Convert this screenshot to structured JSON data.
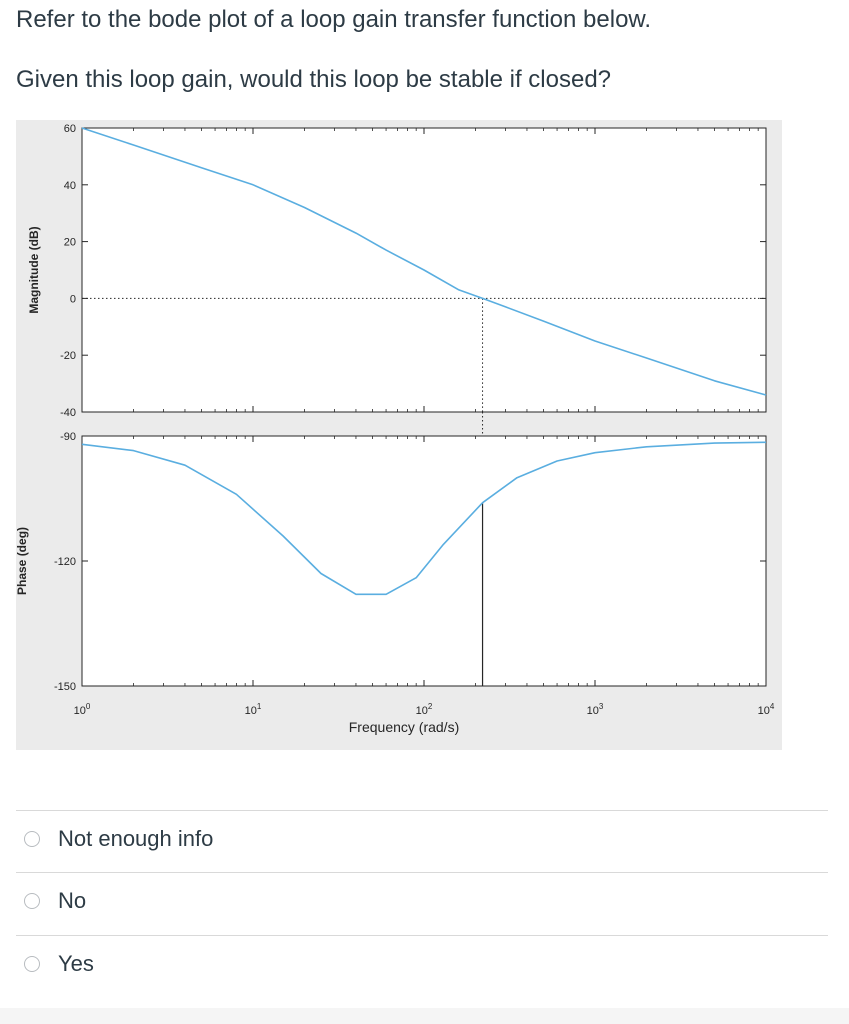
{
  "question": {
    "line1": "Refer to the bode plot of a loop gain transfer function below.",
    "line2": "Given this loop gain, would this loop be stable if closed?"
  },
  "answers": [
    {
      "label": "Not enough info",
      "selected": false
    },
    {
      "label": "No",
      "selected": false
    },
    {
      "label": "Yes",
      "selected": false
    }
  ],
  "colors": {
    "curve": "#5aaee0",
    "question_text": "#2d3b45",
    "figure_bg": "#ebebeb"
  },
  "chart_data": [
    {
      "type": "line",
      "title": "",
      "xlabel": "Frequency (rad/s)",
      "ylabel": "Magnitude (dB)",
      "xscale": "log",
      "xlim": [
        1,
        10000
      ],
      "ylim": [
        -40,
        60
      ],
      "yticks": [
        "60",
        "40",
        "20",
        "0",
        "-20",
        "-40"
      ],
      "grid": false,
      "series": [
        {
          "x": [
            1,
            2,
            5,
            10,
            20,
            40,
            60,
            100,
            160,
            220,
            300,
            500,
            1000,
            2000,
            5000,
            10000
          ],
          "y": [
            60,
            54,
            46,
            40,
            32,
            23,
            17,
            10,
            3,
            0,
            -3,
            -8,
            -15,
            -21,
            -29,
            -34
          ]
        }
      ],
      "annotations": [
        {
          "type": "hline_dotted",
          "y": 0
        },
        {
          "type": "vline_dotted",
          "x": 220
        }
      ]
    },
    {
      "type": "line",
      "title": "",
      "xlabel": "Frequency (rad/s)",
      "ylabel": "Phase (deg)",
      "xscale": "log",
      "xlim": [
        1,
        10000
      ],
      "ylim": [
        -150,
        -90
      ],
      "yticks": [
        "-90",
        "-120",
        "-150"
      ],
      "xticks": [
        {
          "base": "10",
          "exp": "0"
        },
        {
          "base": "10",
          "exp": "1"
        },
        {
          "base": "10",
          "exp": "2"
        },
        {
          "base": "10",
          "exp": "3"
        },
        {
          "base": "10",
          "exp": "4"
        }
      ],
      "grid": false,
      "series": [
        {
          "x": [
            1,
            2,
            4,
            8,
            15,
            25,
            40,
            60,
            90,
            130,
            220,
            350,
            600,
            1000,
            2000,
            5000,
            10000
          ],
          "y": [
            -92,
            -93.5,
            -97,
            -104,
            -114,
            -123,
            -128,
            -128,
            -124,
            -116,
            -106,
            -100,
            -96,
            -94,
            -92.6,
            -91.7,
            -91.5
          ]
        }
      ],
      "annotations": [
        {
          "type": "vline_solid",
          "x": 220,
          "from_y": -150,
          "to_y": -106
        }
      ]
    }
  ]
}
